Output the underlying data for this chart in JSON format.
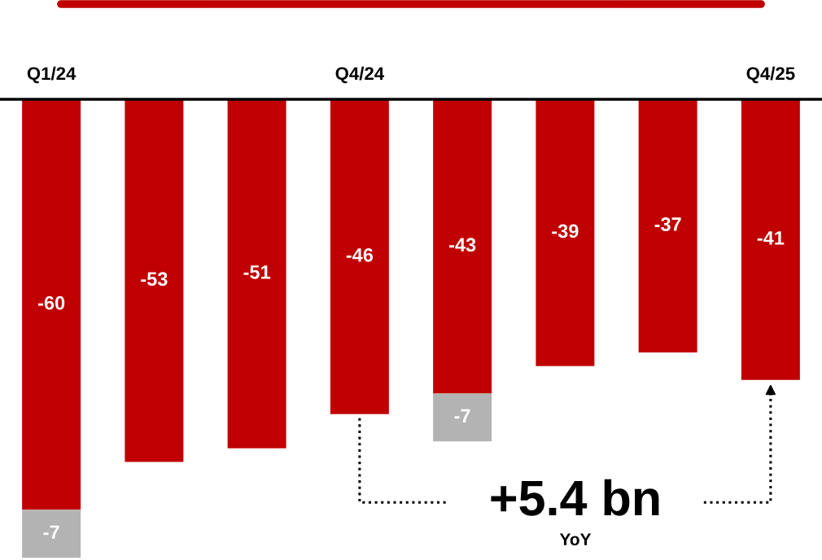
{
  "chart_data": {
    "type": "bar",
    "stacked": true,
    "data_labels": true,
    "categories": [
      "Q1/24",
      null,
      null,
      "Q4/24",
      null,
      null,
      null,
      "Q4/25"
    ],
    "series": [
      {
        "color": "#c00000",
        "values": [
          -60,
          -53,
          -51,
          -46,
          -43,
          -39,
          -37,
          -41
        ]
      },
      {
        "color": "#b3b3b3",
        "values": [
          -7,
          null,
          null,
          null,
          -7,
          null,
          null,
          null
        ]
      }
    ],
    "tick_labels": "x",
    "grid": false,
    "legend": false,
    "annotations": [
      "+5.4 bn",
      "YoY"
    ]
  }
}
